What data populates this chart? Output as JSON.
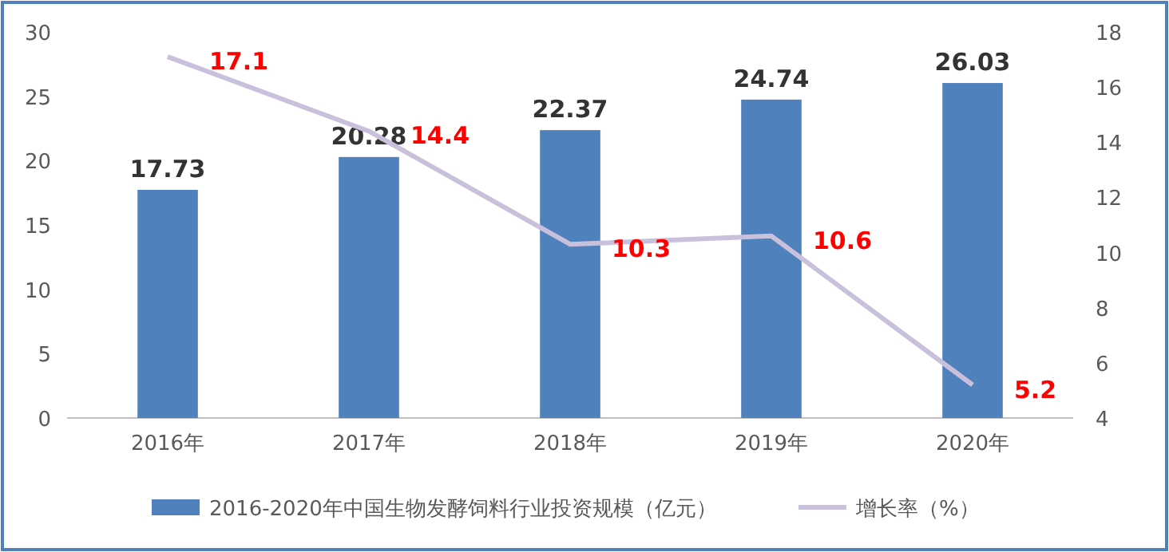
{
  "chart_data": {
    "type": "bar",
    "categories": [
      "2016年",
      "2017年",
      "2018年",
      "2019年",
      "2020年"
    ],
    "series": [
      {
        "name": "2016-2020年中国生物发酵饲料行业投资规模（亿元）",
        "color": "#4f81bd",
        "values": [
          17.73,
          20.28,
          22.37,
          24.74,
          26.03
        ]
      },
      {
        "name": "增长率（%）",
        "type": "line",
        "axis": "y2",
        "color": "#c9c0dc",
        "values": [
          17.1,
          14.4,
          10.3,
          10.6,
          5.2
        ]
      }
    ],
    "ylim": [
      0,
      30
    ],
    "yticks": [
      0,
      5,
      10,
      15,
      20,
      25,
      30
    ],
    "y2lim": [
      4,
      18
    ],
    "y2ticks": [
      4,
      6,
      8,
      10,
      12,
      14,
      16,
      18
    ],
    "data_labels": true,
    "legend": "bottom",
    "grid": false,
    "marker": "none"
  }
}
